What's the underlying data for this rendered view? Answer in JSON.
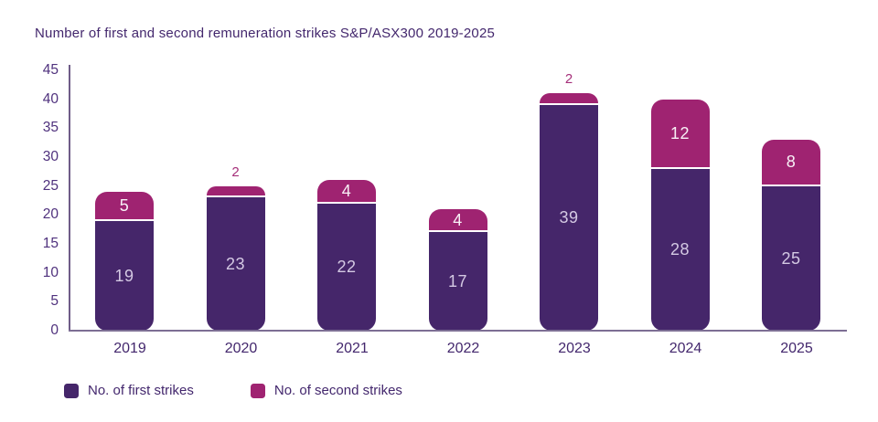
{
  "chart_data": {
    "type": "bar",
    "stacked": true,
    "title": "Number of first and second remuneration strikes S&P/ASX300 2019-2025",
    "categories": [
      "2019",
      "2020",
      "2021",
      "2022",
      "2023",
      "2024",
      "2025"
    ],
    "series": [
      {
        "name": "No. of first strikes",
        "color": "#45266a",
        "values": [
          19,
          23,
          22,
          17,
          39,
          28,
          25
        ]
      },
      {
        "name": "No. of second strikes",
        "color": "#9f2371",
        "values": [
          5,
          2,
          4,
          4,
          2,
          12,
          8
        ]
      }
    ],
    "totals": [
      24,
      25,
      26,
      21,
      41,
      40,
      33
    ],
    "ylim": [
      0,
      45
    ],
    "ytick_step": 5,
    "ytick_labels": [
      "0",
      "5",
      "10",
      "15",
      "20",
      "25",
      "30",
      "35",
      "40",
      "45"
    ],
    "grid": false,
    "legend_position": "bottom-left",
    "bar_value_labels": true
  },
  "colors": {
    "background": "#ffffff",
    "first_series": "#45266a",
    "second_series": "#9f2371",
    "axis_line": "#7d6e94",
    "title_text": "#43276d",
    "tick_text": "#4f317d",
    "value_label_on_first": "#d4c9e3",
    "value_label_on_second": "#f8f0f6",
    "value_label_above_bar": "#a52e79",
    "segment_gap": "#ffffff"
  }
}
